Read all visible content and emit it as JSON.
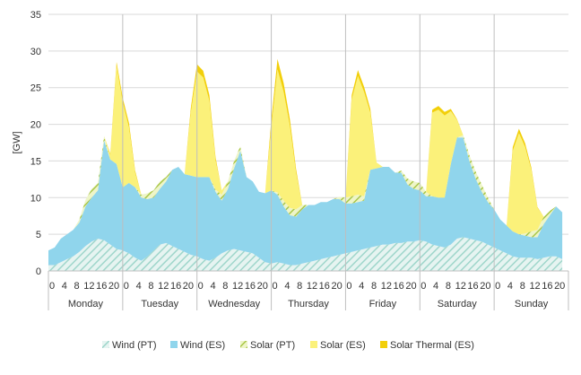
{
  "chart_data": {
    "type": "area",
    "stacked": true,
    "ylabel": "[GW]",
    "ylim": [
      0,
      35
    ],
    "yticks": [
      0,
      5,
      10,
      15,
      20,
      25,
      30,
      35
    ],
    "grid": true,
    "legend_position": "bottom",
    "hour_tick_labels": [
      "0",
      "4",
      "8",
      "12",
      "16",
      "20"
    ],
    "days": [
      "Monday",
      "Tuesday",
      "Wednesday",
      "Thursday",
      "Friday",
      "Saturday",
      "Sunday"
    ],
    "x": [
      0,
      2,
      4,
      6,
      8,
      10,
      12,
      14,
      16,
      18,
      20,
      22,
      24,
      26,
      28,
      30,
      32,
      34,
      36,
      38,
      40,
      42,
      44,
      46,
      48,
      50,
      52,
      54,
      56,
      58,
      60,
      62,
      64,
      66,
      68,
      70,
      72,
      74,
      76,
      78,
      80,
      82,
      84,
      86,
      88,
      90,
      92,
      94,
      96,
      98,
      100,
      102,
      104,
      106,
      108,
      110,
      112,
      114,
      116,
      118,
      120,
      122,
      124,
      126,
      128,
      130,
      132,
      134,
      136,
      138,
      140,
      142,
      144,
      146,
      148,
      150,
      152,
      154,
      156,
      158,
      160,
      162,
      164,
      166
    ],
    "series": [
      {
        "name": "Wind (PT)",
        "color": "#b3e1d8",
        "pattern": "hatch",
        "values": [
          0.8,
          0.8,
          1.2,
          1.6,
          2.0,
          2.6,
          3.4,
          4.0,
          4.4,
          4.2,
          3.6,
          3.0,
          2.8,
          2.4,
          1.8,
          1.4,
          2.0,
          2.8,
          3.6,
          3.8,
          3.4,
          3.0,
          2.6,
          2.2,
          2.0,
          1.6,
          1.4,
          1.8,
          2.4,
          2.8,
          3.0,
          2.8,
          2.6,
          2.4,
          1.8,
          1.2,
          1.0,
          1.2,
          1.0,
          0.8,
          0.8,
          1.0,
          1.2,
          1.4,
          1.6,
          1.8,
          2.0,
          2.2,
          2.4,
          2.6,
          2.8,
          3.0,
          3.2,
          3.4,
          3.6,
          3.6,
          3.8,
          3.8,
          4.0,
          4.0,
          4.2,
          4.0,
          3.6,
          3.4,
          3.2,
          3.6,
          4.4,
          4.6,
          4.4,
          4.2,
          4.0,
          3.6,
          3.2,
          2.8,
          2.4,
          2.0,
          1.8,
          1.8,
          1.8,
          1.6,
          1.8,
          2.0,
          2.0,
          1.6
        ]
      },
      {
        "name": "Wind (ES)",
        "color": "#90d5ec",
        "pattern": "solid",
        "values": [
          2.0,
          2.4,
          3.2,
          3.4,
          3.6,
          4.0,
          5.4,
          6.0,
          6.6,
          13.6,
          11.6,
          11.6,
          8.6,
          9.6,
          9.6,
          8.6,
          7.8,
          7.2,
          7.6,
          8.4,
          10.4,
          11.2,
          10.6,
          10.8,
          10.8,
          11.2,
          11.4,
          9.0,
          7.2,
          8.4,
          11.0,
          13.6,
          10.2,
          9.8,
          9.0,
          9.4,
          10.0,
          9.2,
          7.8,
          6.8,
          6.6,
          7.4,
          7.8,
          7.6,
          7.8,
          7.6,
          7.8,
          7.6,
          6.8,
          6.6,
          6.6,
          6.6,
          10.6,
          10.6,
          10.6,
          10.6,
          9.6,
          9.6,
          7.8,
          7.2,
          6.8,
          6.2,
          6.6,
          6.6,
          6.8,
          11.0,
          13.8,
          13.6,
          10.6,
          8.4,
          6.8,
          5.8,
          5.2,
          4.2,
          3.8,
          3.4,
          3.2,
          3.0,
          2.8,
          3.0,
          4.6,
          5.6,
          6.8,
          6.4
        ]
      },
      {
        "name": "Solar (PT)",
        "color": "#c8dc78",
        "pattern": "hatch",
        "values": [
          0,
          0,
          0,
          0,
          0,
          0.4,
          0.9,
          1.2,
          1.0,
          0.6,
          0,
          0,
          0,
          0,
          0,
          0.4,
          0.8,
          1.0,
          1.0,
          0.6,
          0,
          0,
          0,
          0,
          0,
          0,
          0,
          0.3,
          0.8,
          1.0,
          1.0,
          0.6,
          0,
          0,
          0,
          0,
          0,
          0.3,
          0.8,
          1.0,
          1.0,
          0.6,
          0,
          0,
          0,
          0,
          0,
          0.3,
          0.8,
          1.0,
          1.0,
          0.6,
          0,
          0,
          0,
          0,
          0,
          0.3,
          0.8,
          1.0,
          1.0,
          0.6,
          0,
          0,
          0,
          0,
          0,
          0.3,
          0.8,
          1.0,
          1.0,
          0.6,
          0,
          0,
          0,
          0,
          0,
          0.3,
          0.8,
          1.0,
          1.0,
          0.6,
          0,
          0
        ]
      },
      {
        "name": "Solar (ES)",
        "color": "#fbf17a",
        "pattern": "solid",
        "values": [
          0,
          0,
          0,
          0,
          0,
          0,
          0,
          0,
          0,
          0,
          0.6,
          13.4,
          11.6,
          7.6,
          2.0,
          0,
          0,
          0,
          0,
          0,
          0,
          0,
          0,
          8.6,
          14.4,
          13.6,
          10.4,
          4.0,
          0.6,
          0,
          0,
          0,
          0,
          0,
          0,
          0,
          8.6,
          16.8,
          14.8,
          11.2,
          5.0,
          0,
          0,
          0,
          0,
          0,
          0,
          0,
          0,
          13.2,
          16.2,
          14.2,
          7.8,
          0.8,
          0,
          0,
          0,
          0,
          0,
          0,
          0,
          0,
          11.4,
          12.0,
          11.2,
          7.2,
          2.4,
          0,
          0,
          0,
          0,
          0,
          0,
          0,
          0,
          11.0,
          13.8,
          11.8,
          8.4,
          3.0,
          0,
          0,
          0,
          0
        ]
      },
      {
        "name": "Solar Thermal (ES)",
        "color": "#f2cf0a",
        "pattern": "solid",
        "values": [
          0,
          0,
          0,
          0,
          0,
          0,
          0,
          0,
          0,
          0,
          0.2,
          0.5,
          0.6,
          0.6,
          0.3,
          0,
          0,
          0,
          0,
          0,
          0,
          0,
          0,
          0.6,
          1.0,
          0.9,
          0.8,
          0.4,
          0,
          0,
          0,
          0,
          0,
          0,
          0,
          0,
          1.0,
          1.4,
          1.2,
          0.9,
          0.5,
          0,
          0,
          0,
          0,
          0,
          0,
          0,
          0,
          0.6,
          0.8,
          0.7,
          0.5,
          0,
          0,
          0,
          0,
          0,
          0,
          0,
          0,
          0,
          0.4,
          0.5,
          0.5,
          0.3,
          0.1,
          0,
          0,
          0,
          0,
          0,
          0,
          0,
          0,
          0.5,
          0.6,
          0.5,
          0.3,
          0.1,
          0,
          0,
          0,
          0
        ]
      }
    ]
  }
}
